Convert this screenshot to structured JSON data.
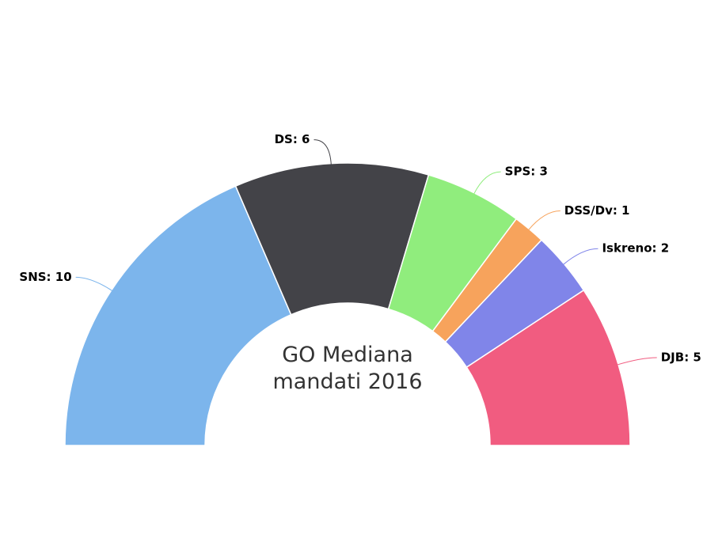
{
  "chart_data": {
    "type": "pie",
    "title": "GO Mediana mandati 2016",
    "categories": [
      "SNS",
      "DS",
      "SPS",
      "DSS/Dv",
      "Iskreno",
      "DJB"
    ],
    "values": [
      10,
      6,
      3,
      1,
      2,
      5
    ],
    "value_labels": [
      "SNS: 10",
      "DS: 6",
      "SPS: 3",
      "DSS/Dv: 1",
      "Iskreno: 2",
      "DJB: 5"
    ],
    "colors": [
      "#7cb5ec",
      "#434348",
      "#90ed7d",
      "#f7a35c",
      "#8085e9",
      "#f15c80"
    ]
  }
}
